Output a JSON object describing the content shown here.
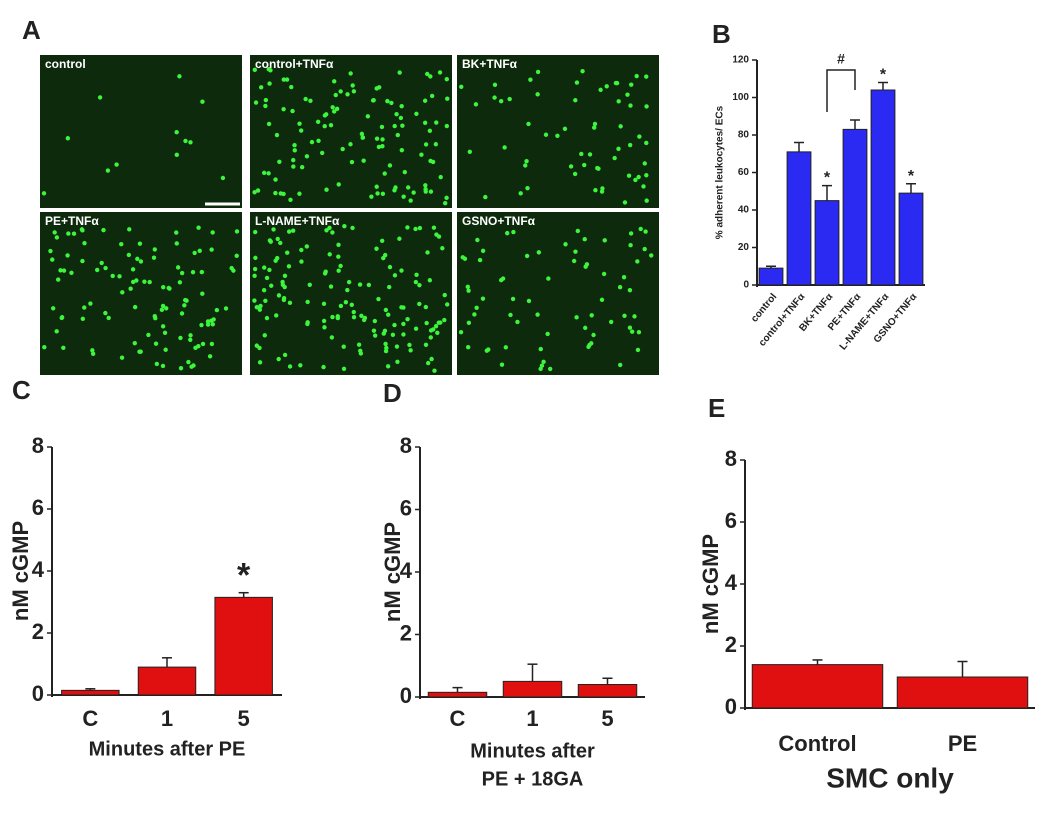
{
  "panel_a": {
    "letter": "A",
    "images": [
      {
        "label": "control"
      },
      {
        "label": "control+TNFα"
      },
      {
        "label": "BK+TNFα"
      },
      {
        "label": "PE+TNFα"
      },
      {
        "label": "L-NAME+TNFα"
      },
      {
        "label": "GSNO+TNFα"
      }
    ]
  },
  "chart_data": [
    {
      "type": "bar",
      "letter": "B",
      "ylabel": "% adherent leukocytes/ ECs",
      "categories": [
        "control",
        "control+TNFα",
        "BK+TNFα",
        "PE+TNFα",
        "L-NAME+TNFα",
        "GSNO+TNFα"
      ],
      "values": [
        9,
        71,
        45,
        83,
        104,
        49
      ],
      "errors": [
        1,
        5,
        8,
        5,
        4,
        5
      ],
      "significance": [
        null,
        null,
        "*",
        null,
        "*",
        "*"
      ],
      "bracket": {
        "text": "#",
        "between": [
          "BK+TNFα",
          "PE+TNFα"
        ]
      },
      "color": "#2a2af2",
      "ylim": [
        0,
        120
      ],
      "yticks": [
        0,
        20,
        40,
        60,
        80,
        100,
        120
      ]
    },
    {
      "type": "bar",
      "letter": "C",
      "ylabel": "nM cGMP",
      "xlabel": [
        "Minutes after PE"
      ],
      "categories": [
        "C",
        "1",
        "5"
      ],
      "values": [
        0.15,
        0.9,
        3.15
      ],
      "errors": [
        0.05,
        0.3,
        0.15
      ],
      "significance": [
        null,
        null,
        "*"
      ],
      "color": "#e01010",
      "ylim": [
        0,
        8
      ],
      "yticks": [
        0,
        2,
        4,
        6,
        8
      ]
    },
    {
      "type": "bar",
      "letter": "D",
      "ylabel": "nM cGMP",
      "xlabel": [
        "Minutes after",
        "PE + 18GA"
      ],
      "categories": [
        "C",
        "1",
        "5"
      ],
      "values": [
        0.15,
        0.5,
        0.4
      ],
      "errors": [
        0.15,
        0.55,
        0.2
      ],
      "color": "#e01010",
      "ylim": [
        0,
        8
      ],
      "yticks": [
        0,
        2,
        4,
        6,
        8
      ]
    },
    {
      "type": "bar",
      "letter": "E",
      "ylabel": "nM cGMP",
      "xlabel": [
        "SMC only"
      ],
      "categories": [
        "Control",
        "PE"
      ],
      "values": [
        1.4,
        1.0
      ],
      "errors": [
        0.15,
        0.5
      ],
      "color": "#e01010",
      "ylim": [
        0,
        8
      ],
      "yticks": [
        0,
        2,
        4,
        6,
        8
      ]
    }
  ]
}
